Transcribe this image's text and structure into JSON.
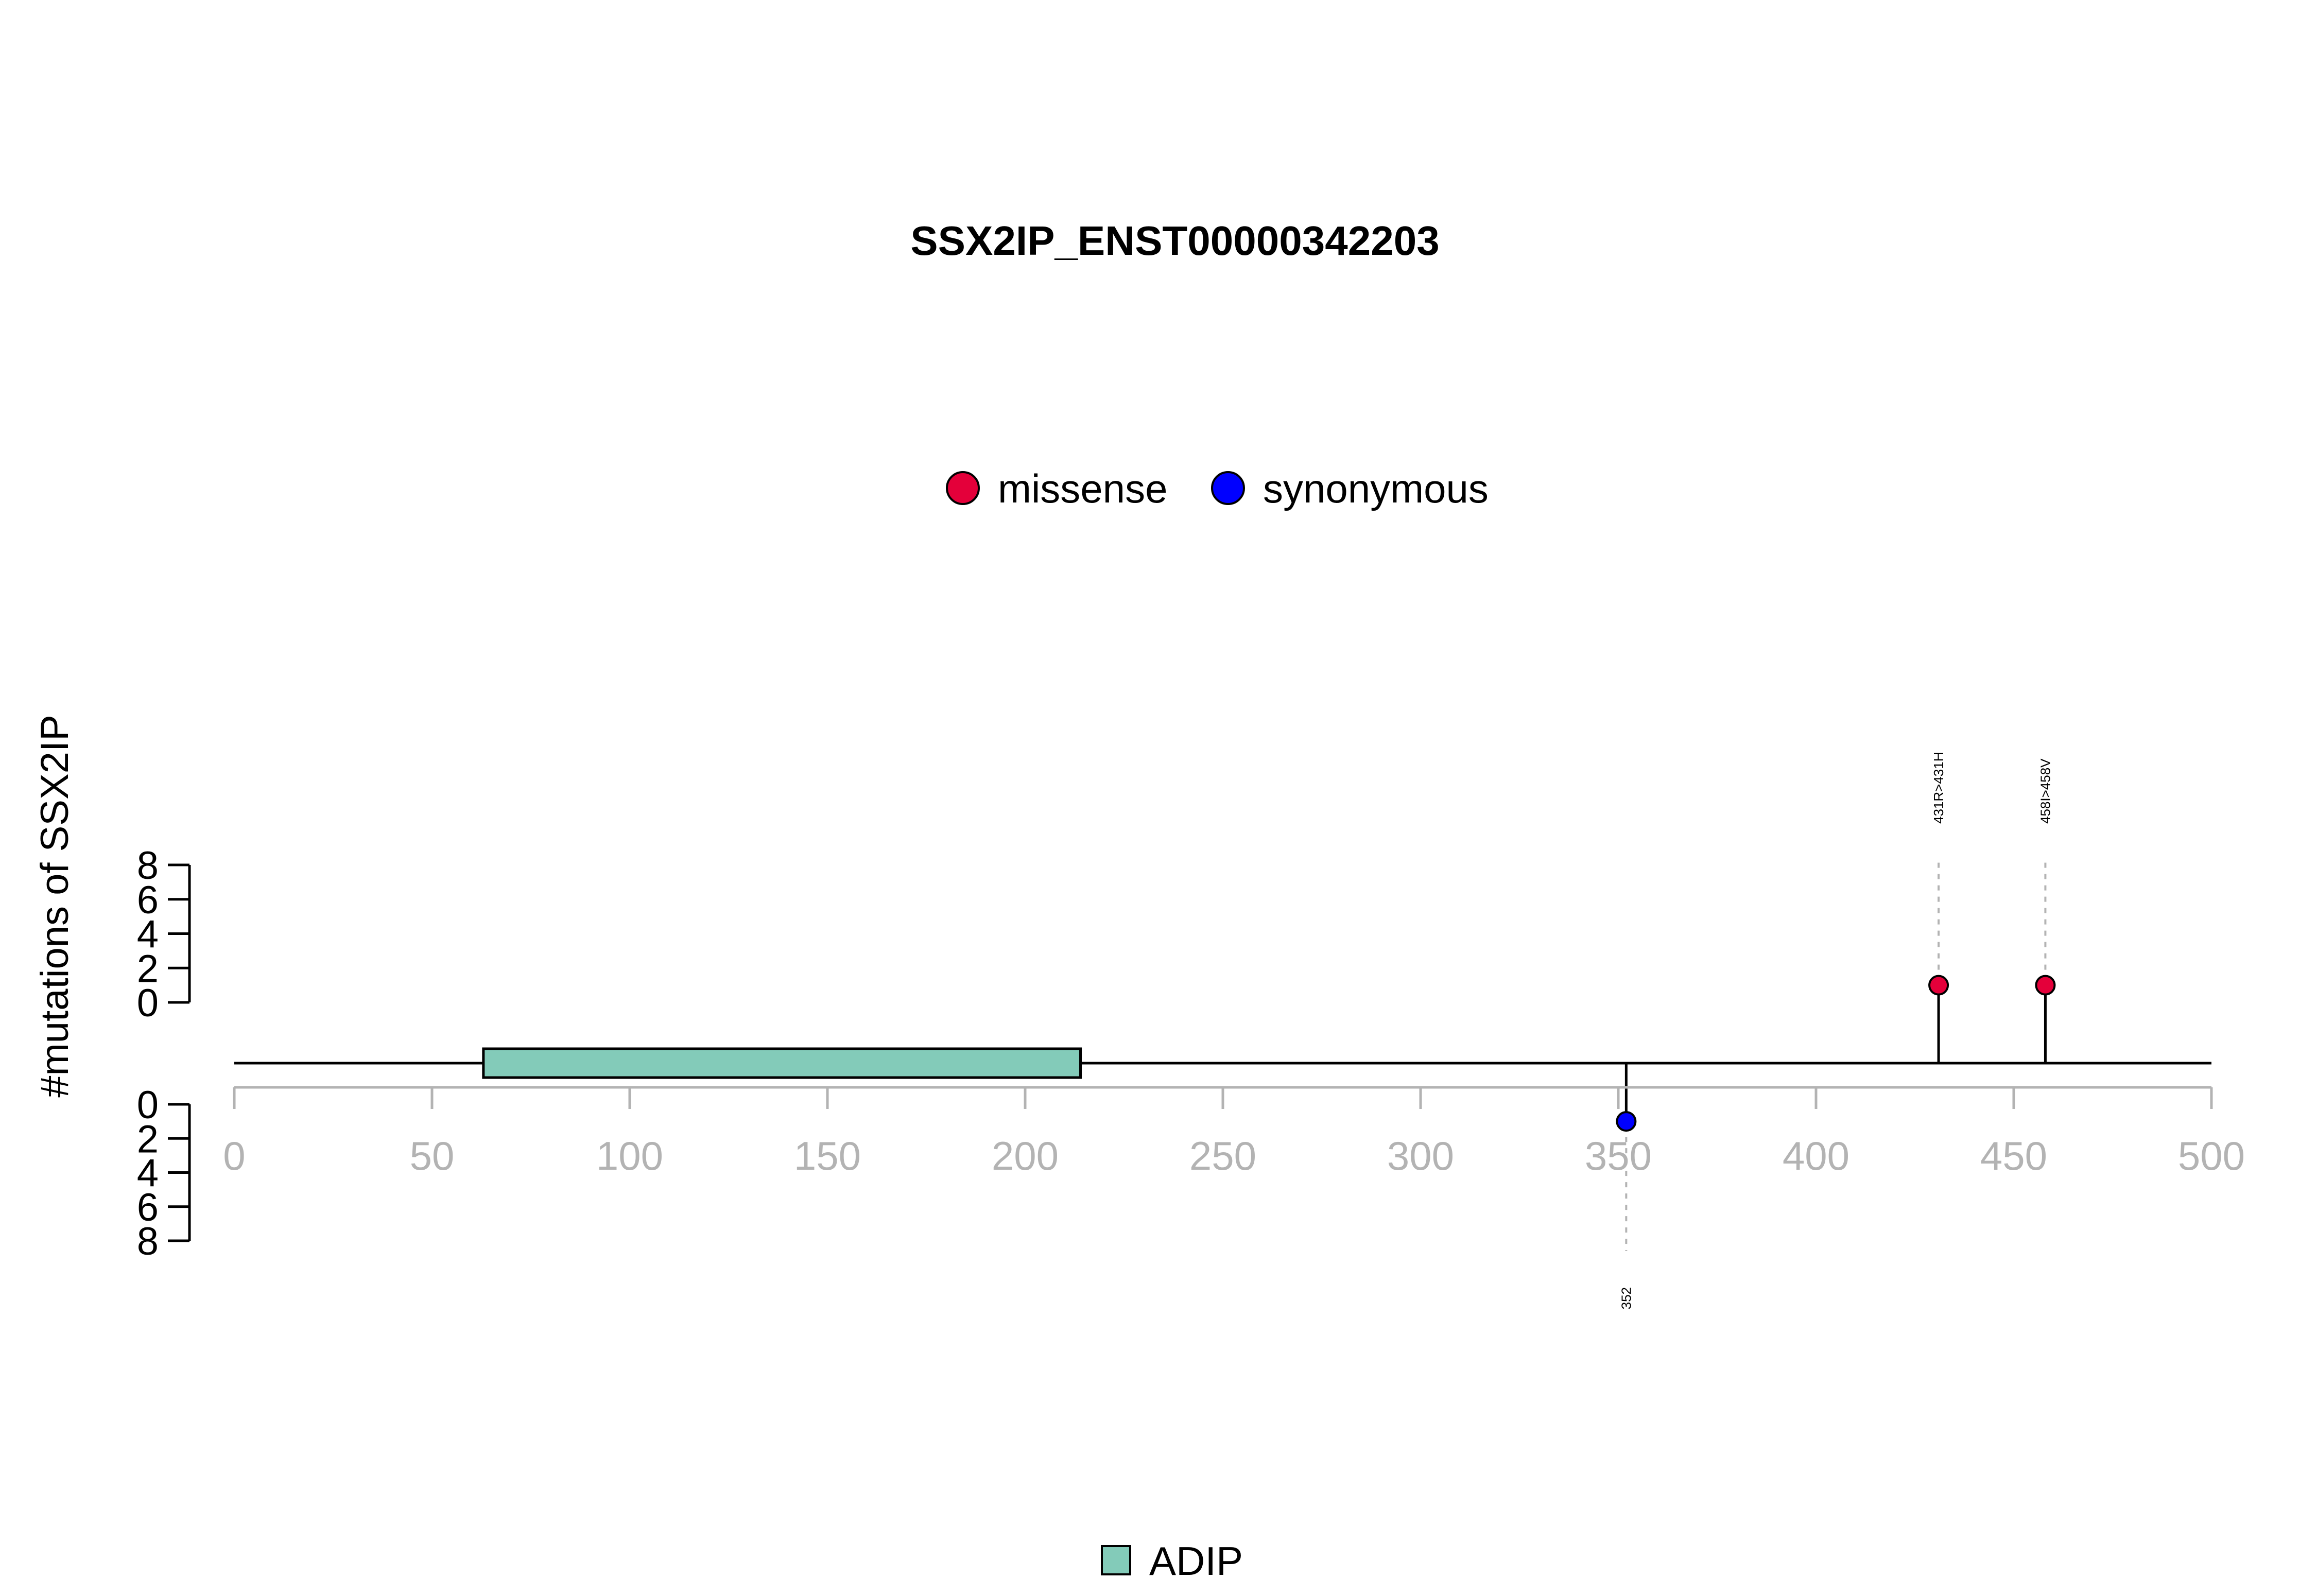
{
  "chart_data": {
    "type": "lollipop",
    "title": "SSX2IP_ENST00000342203",
    "ylabel": "#mutations of SSX2IP",
    "xlim": [
      0,
      500
    ],
    "x_ticks": [
      0,
      50,
      100,
      150,
      200,
      250,
      300,
      350,
      400,
      450,
      500
    ],
    "upper_ylim": [
      0,
      8
    ],
    "upper_y_ticks": [
      0,
      2,
      4,
      6,
      8
    ],
    "lower_ylim": [
      0,
      8
    ],
    "lower_y_ticks": [
      0,
      2,
      4,
      6,
      8
    ],
    "legend": [
      {
        "name": "missense",
        "color": "#e4003a"
      },
      {
        "name": "synonymous",
        "color": "#0000ff"
      }
    ],
    "legend_placement": "top-center",
    "domains": [
      {
        "name": "ADIP",
        "start": 63,
        "end": 214,
        "color": "#83cbb9"
      }
    ],
    "domain_legend_placement": "bottom-center",
    "mutations": [
      {
        "position": 431,
        "count": 1,
        "type": "missense",
        "label": "431R>431H",
        "side": "upper",
        "color": "#e4003a"
      },
      {
        "position": 458,
        "count": 1,
        "type": "missense",
        "label": "458I>458V",
        "side": "upper",
        "color": "#e4003a"
      },
      {
        "position": 352,
        "count": 1,
        "type": "synonymous",
        "label": "352",
        "side": "lower",
        "color": "#0000ff"
      }
    ],
    "grid": false
  }
}
